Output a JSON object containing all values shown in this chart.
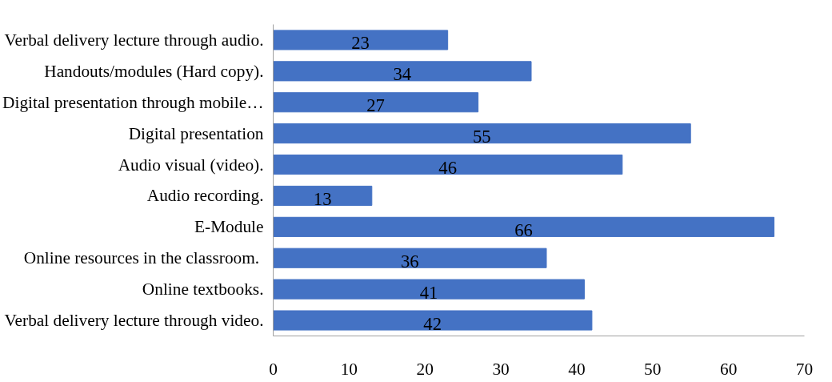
{
  "chart_data": {
    "type": "bar",
    "orientation": "horizontal",
    "categories": [
      "Verbal delivery lecture through audio.",
      "Handouts/modules (Hard copy).",
      "Digital presentation through mobile…",
      "Digital presentation",
      "Audio visual (video).",
      "Audio recording.",
      "E-Module",
      "Online resources  in the classroom.",
      "Online textbooks.",
      "Verbal delivery lecture through video."
    ],
    "values": [
      23,
      34,
      27,
      55,
      46,
      13,
      66,
      36,
      41,
      42
    ],
    "color": "#4472c4",
    "data_labels": true,
    "xlim": [
      0,
      70
    ],
    "xticks": [
      0,
      10,
      20,
      30,
      40,
      50,
      60,
      70
    ],
    "grid": false
  }
}
